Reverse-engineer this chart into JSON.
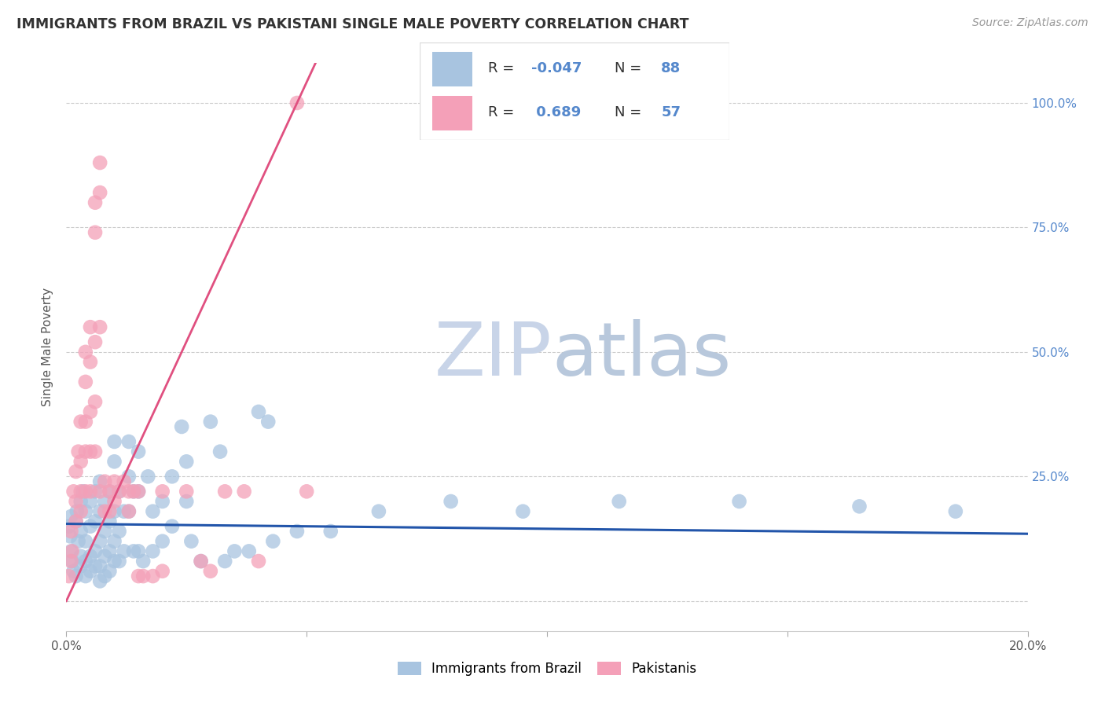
{
  "title": "IMMIGRANTS FROM BRAZIL VS PAKISTANI SINGLE MALE POVERTY CORRELATION CHART",
  "source": "Source: ZipAtlas.com",
  "ylabel": "Single Male Poverty",
  "legend_blue_label": "Immigrants from Brazil",
  "legend_pink_label": "Pakistanis",
  "legend_r_blue": "-0.047",
  "legend_n_blue": "88",
  "legend_r_pink": "0.689",
  "legend_n_pink": "57",
  "blue_color": "#a8c4e0",
  "blue_line_color": "#2255aa",
  "pink_color": "#f4a0b8",
  "pink_line_color": "#e05080",
  "watermark_zip_color": "#c8d4e8",
  "watermark_atlas_color": "#b8c8dc",
  "background_color": "#ffffff",
  "grid_color": "#cccccc",
  "title_color": "#333333",
  "right_axis_color": "#5588cc",
  "y_ticks": [
    0.0,
    0.25,
    0.5,
    0.75,
    1.0
  ],
  "y_tick_labels": [
    "",
    "25.0%",
    "50.0%",
    "75.0%",
    "100.0%"
  ],
  "xlim": [
    0.0,
    0.2
  ],
  "ylim": [
    -0.06,
    1.08
  ],
  "blue_scatter": [
    [
      0.0005,
      0.15
    ],
    [
      0.0008,
      0.13
    ],
    [
      0.001,
      0.17
    ],
    [
      0.001,
      0.1
    ],
    [
      0.0012,
      0.08
    ],
    [
      0.0015,
      0.06
    ],
    [
      0.002,
      0.16
    ],
    [
      0.002,
      0.05
    ],
    [
      0.0022,
      0.18
    ],
    [
      0.0025,
      0.12
    ],
    [
      0.003,
      0.2
    ],
    [
      0.003,
      0.14
    ],
    [
      0.003,
      0.09
    ],
    [
      0.003,
      0.07
    ],
    [
      0.0035,
      0.22
    ],
    [
      0.004,
      0.18
    ],
    [
      0.004,
      0.12
    ],
    [
      0.004,
      0.08
    ],
    [
      0.004,
      0.05
    ],
    [
      0.005,
      0.2
    ],
    [
      0.005,
      0.15
    ],
    [
      0.005,
      0.09
    ],
    [
      0.005,
      0.06
    ],
    [
      0.006,
      0.22
    ],
    [
      0.006,
      0.16
    ],
    [
      0.006,
      0.1
    ],
    [
      0.006,
      0.07
    ],
    [
      0.007,
      0.24
    ],
    [
      0.007,
      0.18
    ],
    [
      0.007,
      0.12
    ],
    [
      0.007,
      0.07
    ],
    [
      0.007,
      0.04
    ],
    [
      0.008,
      0.2
    ],
    [
      0.008,
      0.14
    ],
    [
      0.008,
      0.09
    ],
    [
      0.008,
      0.05
    ],
    [
      0.009,
      0.22
    ],
    [
      0.009,
      0.16
    ],
    [
      0.009,
      0.1
    ],
    [
      0.009,
      0.06
    ],
    [
      0.01,
      0.32
    ],
    [
      0.01,
      0.28
    ],
    [
      0.01,
      0.18
    ],
    [
      0.01,
      0.12
    ],
    [
      0.01,
      0.08
    ],
    [
      0.011,
      0.22
    ],
    [
      0.011,
      0.14
    ],
    [
      0.011,
      0.08
    ],
    [
      0.012,
      0.18
    ],
    [
      0.012,
      0.1
    ],
    [
      0.013,
      0.32
    ],
    [
      0.013,
      0.25
    ],
    [
      0.013,
      0.18
    ],
    [
      0.014,
      0.22
    ],
    [
      0.014,
      0.1
    ],
    [
      0.015,
      0.3
    ],
    [
      0.015,
      0.22
    ],
    [
      0.015,
      0.1
    ],
    [
      0.016,
      0.08
    ],
    [
      0.017,
      0.25
    ],
    [
      0.018,
      0.18
    ],
    [
      0.018,
      0.1
    ],
    [
      0.02,
      0.2
    ],
    [
      0.02,
      0.12
    ],
    [
      0.022,
      0.25
    ],
    [
      0.022,
      0.15
    ],
    [
      0.024,
      0.35
    ],
    [
      0.025,
      0.28
    ],
    [
      0.025,
      0.2
    ],
    [
      0.026,
      0.12
    ],
    [
      0.028,
      0.08
    ],
    [
      0.03,
      0.36
    ],
    [
      0.032,
      0.3
    ],
    [
      0.033,
      0.08
    ],
    [
      0.035,
      0.1
    ],
    [
      0.038,
      0.1
    ],
    [
      0.04,
      0.38
    ],
    [
      0.042,
      0.36
    ],
    [
      0.043,
      0.12
    ],
    [
      0.048,
      0.14
    ],
    [
      0.055,
      0.14
    ],
    [
      0.065,
      0.18
    ],
    [
      0.08,
      0.2
    ],
    [
      0.095,
      0.18
    ],
    [
      0.115,
      0.2
    ],
    [
      0.14,
      0.2
    ],
    [
      0.165,
      0.19
    ],
    [
      0.185,
      0.18
    ]
  ],
  "pink_scatter": [
    [
      0.0005,
      0.05
    ],
    [
      0.001,
      0.08
    ],
    [
      0.001,
      0.14
    ],
    [
      0.0012,
      0.1
    ],
    [
      0.0015,
      0.22
    ],
    [
      0.002,
      0.26
    ],
    [
      0.002,
      0.2
    ],
    [
      0.002,
      0.16
    ],
    [
      0.0025,
      0.3
    ],
    [
      0.003,
      0.36
    ],
    [
      0.003,
      0.28
    ],
    [
      0.003,
      0.22
    ],
    [
      0.003,
      0.18
    ],
    [
      0.004,
      0.5
    ],
    [
      0.004,
      0.44
    ],
    [
      0.004,
      0.36
    ],
    [
      0.004,
      0.3
    ],
    [
      0.004,
      0.22
    ],
    [
      0.005,
      0.55
    ],
    [
      0.005,
      0.48
    ],
    [
      0.005,
      0.38
    ],
    [
      0.005,
      0.3
    ],
    [
      0.005,
      0.22
    ],
    [
      0.006,
      0.8
    ],
    [
      0.006,
      0.74
    ],
    [
      0.006,
      0.52
    ],
    [
      0.006,
      0.4
    ],
    [
      0.006,
      0.3
    ],
    [
      0.007,
      0.88
    ],
    [
      0.007,
      0.82
    ],
    [
      0.007,
      0.55
    ],
    [
      0.007,
      0.22
    ],
    [
      0.008,
      0.24
    ],
    [
      0.008,
      0.18
    ],
    [
      0.009,
      0.22
    ],
    [
      0.009,
      0.18
    ],
    [
      0.01,
      0.24
    ],
    [
      0.01,
      0.2
    ],
    [
      0.011,
      0.22
    ],
    [
      0.012,
      0.24
    ],
    [
      0.013,
      0.22
    ],
    [
      0.013,
      0.18
    ],
    [
      0.014,
      0.22
    ],
    [
      0.015,
      0.22
    ],
    [
      0.015,
      0.05
    ],
    [
      0.016,
      0.05
    ],
    [
      0.018,
      0.05
    ],
    [
      0.02,
      0.22
    ],
    [
      0.02,
      0.06
    ],
    [
      0.025,
      0.22
    ],
    [
      0.028,
      0.08
    ],
    [
      0.03,
      0.06
    ],
    [
      0.033,
      0.22
    ],
    [
      0.037,
      0.22
    ],
    [
      0.04,
      0.08
    ],
    [
      0.048,
      1.0
    ],
    [
      0.05,
      0.22
    ]
  ],
  "blue_line_points": [
    [
      0.0,
      0.155
    ],
    [
      0.2,
      0.135
    ]
  ],
  "pink_line_points": [
    [
      0.0,
      0.0
    ],
    [
      0.048,
      1.0
    ]
  ]
}
